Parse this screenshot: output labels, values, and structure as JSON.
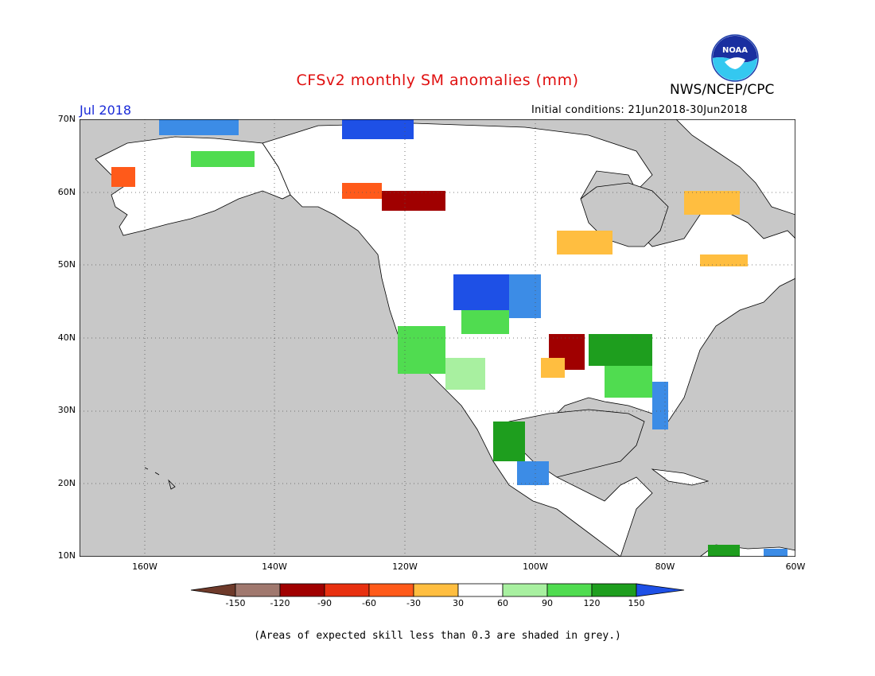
{
  "header": {
    "title": "CFSv2 monthly SM anomalies (mm)",
    "agency": "NWS/NCEP/CPC",
    "month": "Jul 2018",
    "initial_conditions": "Initial conditions: 21Jun2018-30Jun2018"
  },
  "logo": {
    "text": "NOAA",
    "icon": "noaa-logo-icon"
  },
  "map": {
    "lat_labels": [
      "70N",
      "60N",
      "50N",
      "40N",
      "30N",
      "20N",
      "10N"
    ],
    "lon_labels": [
      "160W",
      "140W",
      "120W",
      "100W",
      "80W",
      "60W"
    ],
    "land_color": "#ffffff",
    "masked_color": "#c8c8c8",
    "coast_color": "#000000"
  },
  "colorbar": {
    "labels": [
      "-150",
      "-120",
      "-90",
      "-60",
      "-30",
      "30",
      "60",
      "90",
      "120",
      "150"
    ],
    "colors": [
      "#6e3a2a",
      "#a0786e",
      "#a00000",
      "#e83010",
      "#ff5a1a",
      "#ffbe40",
      "#ffffff",
      "#a8f0a0",
      "#50dc50",
      "#1e9e1e",
      "#3c8ce6",
      "#1e50e6"
    ]
  },
  "footnote": "(Areas of expected skill less than 0.3 are shaded in grey.)"
}
